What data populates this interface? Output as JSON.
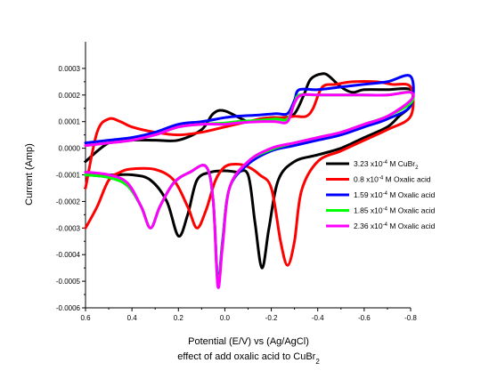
{
  "chart_data": {
    "type": "line",
    "xlabel": "Potential (E/V) vs (Ag/AgCl)",
    "caption": "effect of add oxalic acid to CuBr",
    "caption_sub": "2",
    "ylabel": "Current (Amp)",
    "xlim": [
      0.6,
      -0.8
    ],
    "ylim": [
      -0.0006,
      0.0004
    ],
    "x_ticks": [
      0.6,
      0.4,
      0.2,
      0.0,
      -0.2,
      -0.4,
      -0.6,
      -0.8
    ],
    "x_tick_labels": [
      "0.6",
      "0.4",
      "0.2",
      "0.0",
      "-0.2",
      "-0.4",
      "-0.6",
      "-0.8"
    ],
    "y_ticks": [
      0.0003,
      0.0002,
      0.0001,
      0.0,
      -0.0001,
      -0.0002,
      -0.0003,
      -0.0004,
      -0.0005,
      -0.0006
    ],
    "y_tick_labels": [
      "0.0003",
      "0.0002",
      "0.0001",
      "0.0000",
      "-0.0001",
      "-0.0002",
      "-0.0003",
      "-0.0004",
      "-0.0005",
      "-0.0006"
    ],
    "legend_position": "right",
    "series": [
      {
        "name": "3.23 x10^-4 M CuBr2",
        "legend": {
          "pre": "3.23 x10",
          "sup": "-4",
          "mid": " M CuBr",
          "sub": "2",
          "post": ""
        },
        "color": "#000000",
        "points": [
          [
            0.6,
            -9e-05
          ],
          [
            0.5,
            -0.0001
          ],
          [
            0.4,
            -0.0001
          ],
          [
            0.32,
            -0.00012
          ],
          [
            0.25,
            -0.0002
          ],
          [
            0.2,
            -0.00033
          ],
          [
            0.16,
            -0.00025
          ],
          [
            0.12,
            -0.00012
          ],
          [
            0.06,
            -9e-05
          ],
          [
            0.0,
            -8.5e-05
          ],
          [
            -0.05,
            -9e-05
          ],
          [
            -0.1,
            -0.0001
          ],
          [
            -0.13,
            -0.00028
          ],
          [
            -0.16,
            -0.00045
          ],
          [
            -0.19,
            -0.0003
          ],
          [
            -0.23,
            -0.00012
          ],
          [
            -0.3,
            -5e-05
          ],
          [
            -0.4,
            -2.5e-05
          ],
          [
            -0.5,
            0.0
          ],
          [
            -0.6,
            4e-05
          ],
          [
            -0.7,
            8e-05
          ],
          [
            -0.75,
            0.00012
          ],
          [
            -0.8,
            0.00016
          ],
          [
            -0.8,
            0.00022
          ],
          [
            -0.7,
            0.00022
          ],
          [
            -0.6,
            0.00022
          ],
          [
            -0.55,
            0.00021
          ],
          [
            -0.5,
            0.00023
          ],
          [
            -0.45,
            0.00027
          ],
          [
            -0.42,
            0.00028
          ],
          [
            -0.37,
            0.00026
          ],
          [
            -0.34,
            0.0002
          ],
          [
            -0.3,
            0.00013
          ],
          [
            -0.25,
            0.000115
          ],
          [
            -0.22,
            0.000115
          ],
          [
            -0.2,
            0.000115
          ],
          [
            -0.15,
            0.00011
          ],
          [
            -0.1,
            0.0001
          ],
          [
            0.0,
            0.00014
          ],
          [
            0.05,
            0.00013
          ],
          [
            0.1,
            7e-05
          ],
          [
            0.2,
            3e-05
          ],
          [
            0.3,
            3e-05
          ],
          [
            0.4,
            3e-05
          ],
          [
            0.5,
            2e-05
          ],
          [
            0.6,
            -5e-05
          ]
        ]
      },
      {
        "name": "0.8 x10^-4 M Oxalic acid",
        "legend": {
          "pre": "0.8 x10",
          "sup": "-4",
          "mid": " M Oxalic acid",
          "sub": "",
          "post": ""
        },
        "color": "#ff0000",
        "points": [
          [
            0.6,
            -0.0003
          ],
          [
            0.55,
            -0.00022
          ],
          [
            0.5,
            -0.00012
          ],
          [
            0.45,
            -9e-05
          ],
          [
            0.4,
            -7.8e-05
          ],
          [
            0.3,
            -8e-05
          ],
          [
            0.22,
            -0.00012
          ],
          [
            0.16,
            -0.00022
          ],
          [
            0.12,
            -0.0003
          ],
          [
            0.08,
            -0.00023
          ],
          [
            0.04,
            -0.00012
          ],
          [
            0.0,
            -7e-05
          ],
          [
            -0.05,
            -6e-05
          ],
          [
            -0.1,
            -7e-05
          ],
          [
            -0.15,
            -0.0001
          ],
          [
            -0.2,
            -0.00015
          ],
          [
            -0.24,
            -0.00035
          ],
          [
            -0.27,
            -0.00044
          ],
          [
            -0.3,
            -0.00035
          ],
          [
            -0.33,
            -0.00016
          ],
          [
            -0.4,
            -5e-05
          ],
          [
            -0.5,
            -1e-05
          ],
          [
            -0.6,
            3e-05
          ],
          [
            -0.7,
            7e-05
          ],
          [
            -0.8,
            0.00012
          ],
          [
            -0.8,
            0.00023
          ],
          [
            -0.72,
            0.00024
          ],
          [
            -0.65,
            0.00025
          ],
          [
            -0.55,
            0.00025
          ],
          [
            -0.48,
            0.00024
          ],
          [
            -0.42,
            0.00023
          ],
          [
            -0.38,
            0.00015
          ],
          [
            -0.35,
            0.00012
          ],
          [
            -0.3,
            0.00012
          ],
          [
            -0.25,
            0.000115
          ],
          [
            -0.2,
            0.000115
          ],
          [
            -0.15,
            0.00011
          ],
          [
            -0.1,
            0.0001
          ],
          [
            0.0,
            8e-05
          ],
          [
            0.1,
            6e-05
          ],
          [
            0.2,
            5e-05
          ],
          [
            0.3,
            6e-05
          ],
          [
            0.4,
            8e-05
          ],
          [
            0.45,
            0.0001
          ],
          [
            0.5,
            0.00011
          ],
          [
            0.55,
            6e-05
          ],
          [
            0.6,
            -0.00015
          ]
        ]
      },
      {
        "name": "1.59 x10^-4 M Oxalic acid",
        "legend": {
          "pre": "1.59 x10",
          "sup": "-4",
          "mid": " M Oxalic acid",
          "sub": "",
          "post": ""
        },
        "color": "#0000ff",
        "points": [
          [
            0.6,
            -0.0001
          ],
          [
            0.5,
            -0.00011
          ],
          [
            0.42,
            -0.00014
          ],
          [
            0.36,
            -0.00022
          ],
          [
            0.32,
            -0.0003
          ],
          [
            0.28,
            -0.00022
          ],
          [
            0.22,
            -0.00013
          ],
          [
            0.15,
            -9e-05
          ],
          [
            0.08,
            -7e-05
          ],
          [
            0.05,
            -0.0002
          ],
          [
            0.03,
            -0.0005
          ],
          [
            0.01,
            -0.00035
          ],
          [
            -0.02,
            -0.00015
          ],
          [
            -0.1,
            -6e-05
          ],
          [
            -0.2,
            -1e-05
          ],
          [
            -0.3,
            1e-05
          ],
          [
            -0.4,
            3e-05
          ],
          [
            -0.5,
            5e-05
          ],
          [
            -0.6,
            8e-05
          ],
          [
            -0.7,
            0.00011
          ],
          [
            -0.8,
            0.00016
          ],
          [
            -0.8,
            0.00027
          ],
          [
            -0.7,
            0.00025
          ],
          [
            -0.6,
            0.00024
          ],
          [
            -0.5,
            0.00023
          ],
          [
            -0.4,
            0.00022
          ],
          [
            -0.32,
            0.00022
          ],
          [
            -0.3,
            0.00018
          ],
          [
            -0.27,
            0.00013
          ],
          [
            -0.22,
            0.00013
          ],
          [
            -0.15,
            0.000125
          ],
          [
            -0.05,
            0.00012
          ],
          [
            0.0,
            0.000115
          ],
          [
            0.1,
            0.0001
          ],
          [
            0.2,
            9e-05
          ],
          [
            0.3,
            6e-05
          ],
          [
            0.4,
            4e-05
          ],
          [
            0.5,
            3e-05
          ],
          [
            0.6,
            2e-05
          ]
        ]
      },
      {
        "name": "1.85 x10^-4 M Oxalic acid",
        "legend": {
          "pre": "1.85 x10",
          "sup": "-4",
          "mid": " M Oxalic acid",
          "sub": "",
          "post": ""
        },
        "color": "#00ff00",
        "points": [
          [
            0.6,
            -0.0001
          ],
          [
            0.5,
            -0.00011
          ],
          [
            0.42,
            -0.00014
          ],
          [
            0.36,
            -0.00022
          ],
          [
            0.32,
            -0.0003
          ],
          [
            0.28,
            -0.00022
          ],
          [
            0.22,
            -0.00013
          ],
          [
            0.15,
            -9e-05
          ],
          [
            0.08,
            -7e-05
          ],
          [
            0.05,
            -0.0002
          ],
          [
            0.03,
            -0.00051
          ],
          [
            0.01,
            -0.00036
          ],
          [
            -0.02,
            -0.00015
          ],
          [
            -0.1,
            -5e-05
          ],
          [
            -0.2,
            -5e-06
          ],
          [
            -0.3,
            2e-05
          ],
          [
            -0.4,
            4e-05
          ],
          [
            -0.5,
            6e-05
          ],
          [
            -0.6,
            9e-05
          ],
          [
            -0.7,
            0.00012
          ],
          [
            -0.8,
            0.00017
          ],
          [
            -0.8,
            0.00021
          ],
          [
            -0.7,
            0.0002
          ],
          [
            -0.6,
            0.0002
          ],
          [
            -0.5,
            0.0002
          ],
          [
            -0.4,
            0.0002
          ],
          [
            -0.32,
            0.0002
          ],
          [
            -0.3,
            0.00017
          ],
          [
            -0.27,
            0.00011
          ],
          [
            -0.22,
            0.00011
          ],
          [
            -0.15,
            0.000105
          ],
          [
            -0.05,
            0.0001
          ],
          [
            0.0,
            9.5e-05
          ],
          [
            0.1,
            9e-05
          ],
          [
            0.2,
            8e-05
          ],
          [
            0.3,
            5e-05
          ],
          [
            0.4,
            3e-05
          ],
          [
            0.5,
            2e-05
          ],
          [
            0.6,
            1e-05
          ]
        ]
      },
      {
        "name": "2.36 x10^-4 M Oxalic acid",
        "legend": {
          "pre": "2.36 x10",
          "sup": "-4",
          "mid": " M Oxalic acid",
          "sub": "",
          "post": ""
        },
        "color": "#ff00ff",
        "points": [
          [
            0.6,
            -9e-05
          ],
          [
            0.5,
            -0.0001
          ],
          [
            0.42,
            -0.00013
          ],
          [
            0.36,
            -0.00022
          ],
          [
            0.32,
            -0.0003
          ],
          [
            0.28,
            -0.00022
          ],
          [
            0.22,
            -0.00013
          ],
          [
            0.15,
            -9e-05
          ],
          [
            0.08,
            -7e-05
          ],
          [
            0.05,
            -0.0002
          ],
          [
            0.03,
            -0.00052
          ],
          [
            0.01,
            -0.00037
          ],
          [
            -0.02,
            -0.00015
          ],
          [
            -0.1,
            -5e-05
          ],
          [
            -0.2,
            0.0
          ],
          [
            -0.3,
            2e-05
          ],
          [
            -0.4,
            4e-05
          ],
          [
            -0.5,
            6e-05
          ],
          [
            -0.6,
            9e-05
          ],
          [
            -0.7,
            0.00012
          ],
          [
            -0.8,
            0.00018
          ],
          [
            -0.8,
            0.00021
          ],
          [
            -0.7,
            0.0002
          ],
          [
            -0.6,
            0.0002
          ],
          [
            -0.5,
            0.0002
          ],
          [
            -0.4,
            0.0002
          ],
          [
            -0.33,
            0.0002
          ],
          [
            -0.3,
            0.00017
          ],
          [
            -0.27,
            0.0001
          ],
          [
            -0.22,
            0.0001
          ],
          [
            -0.15,
            0.0001
          ],
          [
            -0.05,
            9.5e-05
          ],
          [
            0.0,
            9e-05
          ],
          [
            0.1,
            9e-05
          ],
          [
            0.2,
            8e-05
          ],
          [
            0.3,
            5e-05
          ],
          [
            0.4,
            3e-05
          ],
          [
            0.5,
            2e-05
          ],
          [
            0.6,
            1e-05
          ]
        ]
      }
    ]
  }
}
